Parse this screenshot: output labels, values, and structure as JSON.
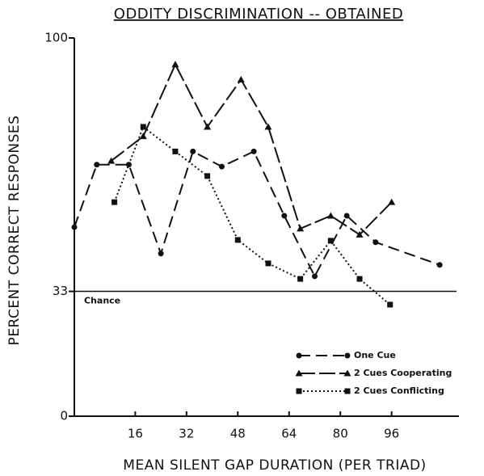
{
  "chart_data": {
    "type": "line",
    "title": "ODDITY DISCRIMINATION -- OBTAINED",
    "x_label": "MEAN SILENT GAP DURATION (PER TRIAD)",
    "y_label": "PERCENT CORRECT RESPONSES",
    "xlim": [
      -3,
      117
    ],
    "xticks": [
      16,
      32,
      48,
      64,
      80,
      96
    ],
    "ylim": [
      0,
      100
    ],
    "yticks": [
      0,
      33,
      100
    ],
    "annotation": {
      "text": "Chance",
      "value": 33
    },
    "legend": "lower right",
    "series": [
      {
        "name": "One Cue",
        "color": "#111111",
        "marker": "circle",
        "dash": "dashed",
        "x": [
          -3,
          4,
          14,
          24,
          34,
          43,
          53,
          62.5,
          72,
          82,
          91,
          111
        ],
        "values": [
          50,
          66.5,
          66.5,
          43,
          70,
          66,
          70,
          53,
          37,
          53,
          46,
          40
        ]
      },
      {
        "name": "2 Cues Cooperating",
        "color": "#111111",
        "marker": "triangle",
        "dash": "longdash",
        "x": [
          8.5,
          18.5,
          28.5,
          38.5,
          49,
          57.5,
          67.5,
          77,
          86,
          96
        ],
        "values": [
          67.5,
          74,
          93,
          76.5,
          89,
          76.5,
          49.6,
          53,
          48,
          56.6
        ]
      },
      {
        "name": "2 Cues Conflicting",
        "color": "#111111",
        "marker": "square",
        "dash": "dotted",
        "x": [
          9.5,
          18.5,
          28.5,
          38.5,
          48,
          57.5,
          67.5,
          77,
          86,
          95.5
        ],
        "values": [
          56.6,
          76.5,
          70,
          63.5,
          46.6,
          40.4,
          36.3,
          46.4,
          36.3,
          29.5
        ]
      }
    ]
  }
}
